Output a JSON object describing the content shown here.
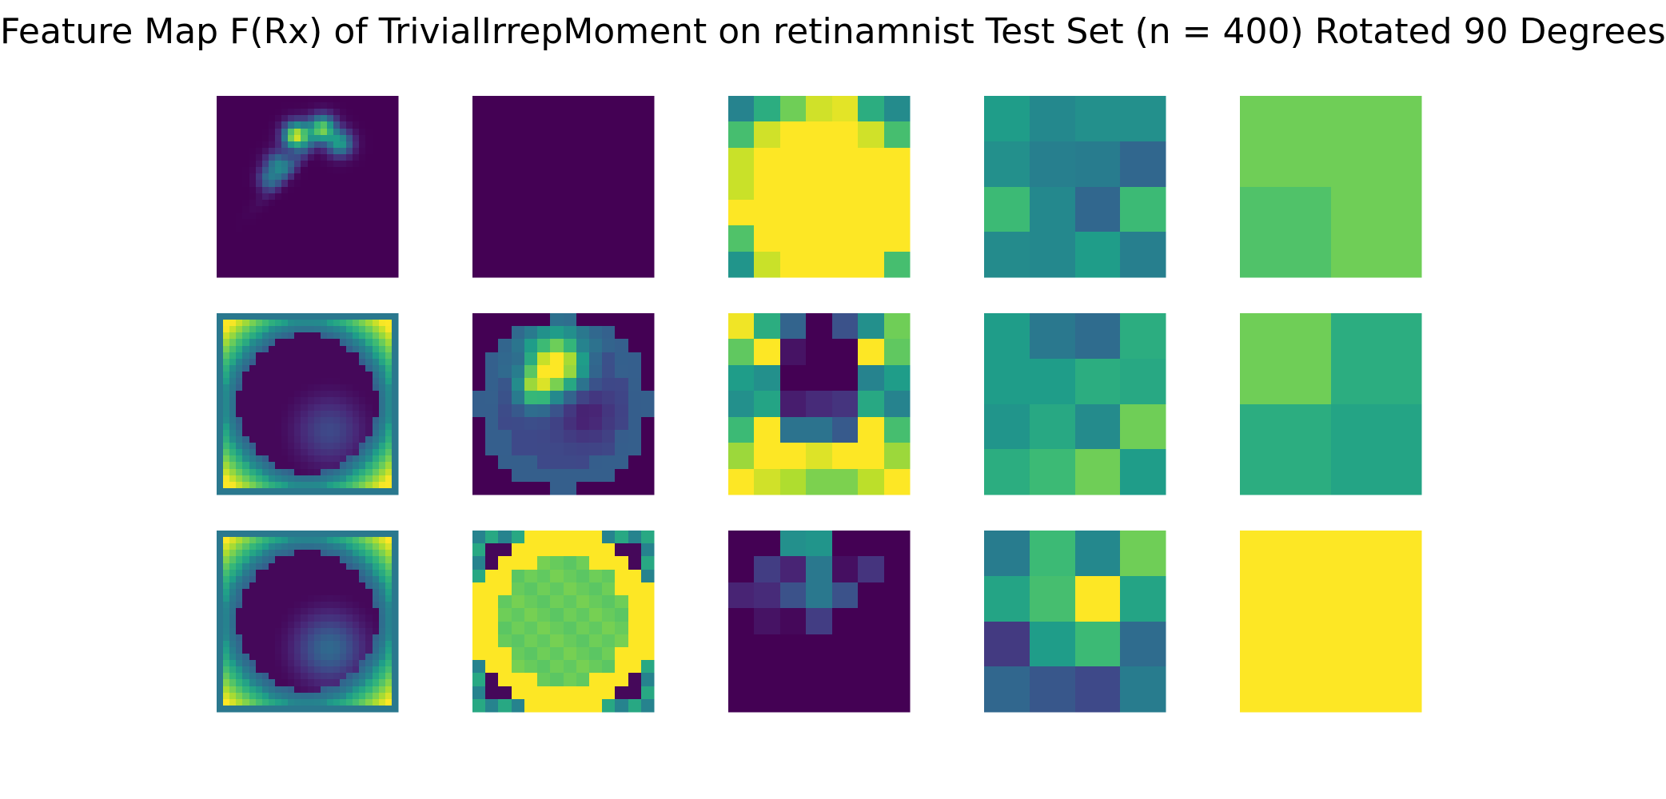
{
  "chart_data": {
    "type": "heatmap",
    "title": "Feature Map F(Rx) of TrivialIrrepMoment on retinamnist Test Set (n = 400) Rotated 90 Degrees",
    "colormap": "viridis",
    "value_range": [
      0,
      1
    ],
    "axes": "off",
    "panels": [
      {
        "row": 0,
        "col": 0,
        "kind": "generated",
        "pattern": "blob",
        "res": 28
      },
      {
        "row": 0,
        "col": 1,
        "kind": "generated",
        "pattern": "zero",
        "res": 28
      },
      {
        "row": 0,
        "col": 2,
        "kind": "matrix",
        "grid": [
          [
            0.45,
            0.62,
            0.78,
            0.93,
            0.96,
            0.62,
            0.48
          ],
          [
            0.7,
            0.93,
            1.0,
            1.0,
            1.0,
            0.93,
            0.7
          ],
          [
            0.92,
            1.0,
            1.0,
            1.0,
            1.0,
            1.0,
            1.0
          ],
          [
            0.92,
            1.0,
            1.0,
            1.0,
            1.0,
            1.0,
            1.0
          ],
          [
            1.0,
            1.0,
            1.0,
            1.0,
            1.0,
            1.0,
            1.0
          ],
          [
            0.72,
            1.0,
            1.0,
            1.0,
            1.0,
            1.0,
            1.0
          ],
          [
            0.52,
            0.92,
            1.0,
            1.0,
            1.0,
            1.0,
            0.7
          ]
        ]
      },
      {
        "row": 0,
        "col": 3,
        "kind": "matrix",
        "grid": [
          [
            0.55,
            0.47,
            0.5,
            0.5
          ],
          [
            0.5,
            0.43,
            0.42,
            0.33
          ],
          [
            0.68,
            0.47,
            0.33,
            0.68
          ],
          [
            0.48,
            0.47,
            0.55,
            0.43
          ]
        ]
      },
      {
        "row": 0,
        "col": 4,
        "kind": "matrix",
        "grid": [
          [
            0.78,
            0.78
          ],
          [
            0.72,
            0.78
          ]
        ]
      },
      {
        "row": 1,
        "col": 0,
        "kind": "generated",
        "pattern": "yinyang",
        "res": 28
      },
      {
        "row": 1,
        "col": 1,
        "kind": "generated",
        "pattern": "dotring",
        "res": 14
      },
      {
        "row": 1,
        "col": 2,
        "kind": "matrix",
        "grid": [
          [
            0.98,
            0.62,
            0.32,
            0.0,
            0.25,
            0.5,
            0.78
          ],
          [
            0.75,
            1.0,
            0.05,
            0.0,
            0.0,
            1.0,
            0.75
          ],
          [
            0.55,
            0.5,
            0.0,
            0.0,
            0.0,
            0.45,
            0.55
          ],
          [
            0.5,
            0.58,
            0.08,
            0.12,
            0.15,
            0.6,
            0.45
          ],
          [
            0.68,
            1.0,
            0.38,
            0.38,
            0.28,
            1.0,
            0.7
          ],
          [
            0.85,
            1.0,
            1.0,
            0.95,
            1.0,
            1.0,
            0.85
          ],
          [
            1.0,
            0.93,
            0.88,
            0.8,
            0.8,
            0.9,
            1.0
          ]
        ]
      },
      {
        "row": 1,
        "col": 3,
        "kind": "matrix",
        "grid": [
          [
            0.55,
            0.4,
            0.35,
            0.62
          ],
          [
            0.55,
            0.55,
            0.62,
            0.6
          ],
          [
            0.52,
            0.6,
            0.48,
            0.78
          ],
          [
            0.62,
            0.68,
            0.78,
            0.55
          ]
        ]
      },
      {
        "row": 1,
        "col": 4,
        "kind": "matrix",
        "grid": [
          [
            0.78,
            0.62
          ],
          [
            0.62,
            0.58
          ]
        ]
      },
      {
        "row": 2,
        "col": 0,
        "kind": "generated",
        "pattern": "yinyang2",
        "res": 28
      },
      {
        "row": 2,
        "col": 1,
        "kind": "generated",
        "pattern": "ring",
        "res": 14
      },
      {
        "row": 2,
        "col": 2,
        "kind": "matrix",
        "grid": [
          [
            0.0,
            0.0,
            0.5,
            0.52,
            0.0,
            0.0,
            0.0
          ],
          [
            0.0,
            0.18,
            0.1,
            0.4,
            0.04,
            0.15,
            0.0
          ],
          [
            0.1,
            0.12,
            0.25,
            0.4,
            0.25,
            0.0,
            0.0
          ],
          [
            0.0,
            0.05,
            0.02,
            0.18,
            0.0,
            0.0,
            0.0
          ],
          [
            0.0,
            0.0,
            0.0,
            0.0,
            0.0,
            0.0,
            0.0
          ],
          [
            0.0,
            0.0,
            0.0,
            0.0,
            0.0,
            0.0,
            0.0
          ],
          [
            0.0,
            0.0,
            0.0,
            0.0,
            0.0,
            0.0,
            0.0
          ]
        ]
      },
      {
        "row": 2,
        "col": 3,
        "kind": "matrix",
        "grid": [
          [
            0.42,
            0.68,
            0.47,
            0.78
          ],
          [
            0.58,
            0.7,
            1.0,
            0.58
          ],
          [
            0.17,
            0.55,
            0.68,
            0.35
          ],
          [
            0.33,
            0.27,
            0.22,
            0.42
          ]
        ]
      },
      {
        "row": 2,
        "col": 4,
        "kind": "matrix",
        "grid": [
          [
            1.0
          ]
        ]
      }
    ]
  }
}
